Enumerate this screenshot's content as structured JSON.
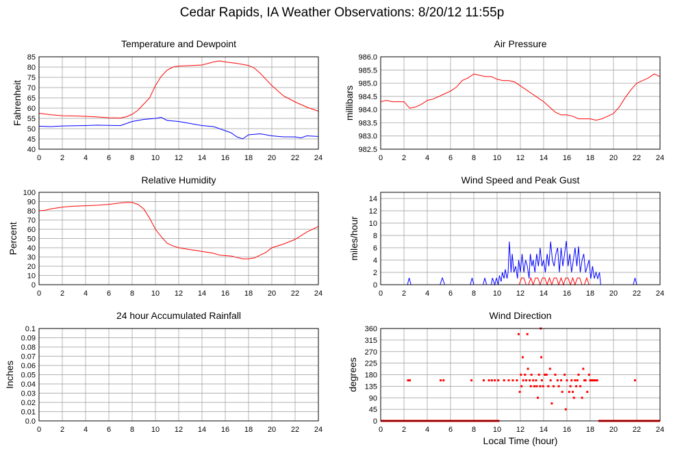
{
  "title": "Cedar Rapids, IA Weather Observations: 8/20/12 11:55p",
  "xlabel": "Local Time (hour)",
  "colors": {
    "red": "#ff0000",
    "blue": "#0000ff",
    "grid": "#999999",
    "frame": "#000000"
  },
  "chart_data": [
    {
      "id": "temp",
      "type": "line",
      "title": "Temperature and Dewpoint",
      "xlabel": "",
      "ylabel": "Fahrenheit",
      "xlim": [
        0,
        24
      ],
      "ylim": [
        40,
        85
      ],
      "xticks": [
        0,
        2,
        4,
        6,
        8,
        10,
        12,
        14,
        16,
        18,
        20,
        22,
        24
      ],
      "yticks": [
        40,
        45,
        50,
        55,
        60,
        65,
        70,
        75,
        80,
        85
      ],
      "grid": true,
      "series": [
        {
          "color": "#ff0000",
          "x": [
            0,
            1,
            2,
            3,
            4,
            5,
            6,
            7,
            7.5,
            8,
            8.5,
            9,
            9.5,
            10,
            10.5,
            11,
            11.5,
            12,
            13,
            14,
            15,
            15.5,
            16,
            17,
            18,
            18.5,
            19,
            20,
            21,
            22,
            23,
            24
          ],
          "y": [
            57.5,
            56.8,
            56.3,
            56.2,
            56.0,
            55.7,
            55.3,
            55.2,
            55.8,
            57,
            59,
            62,
            65,
            71,
            75.5,
            78.5,
            80,
            80.5,
            80.7,
            81,
            82.5,
            83,
            82.5,
            81.8,
            80.8,
            79.5,
            77,
            71,
            66,
            63,
            60.5,
            58.5
          ]
        },
        {
          "color": "#0000ff",
          "x": [
            0,
            1,
            2,
            3,
            4,
            5,
            6,
            7,
            7.5,
            8,
            9,
            10,
            10.5,
            11,
            12,
            13,
            14,
            15,
            16,
            16.5,
            17,
            17.5,
            18,
            19,
            20,
            21,
            22,
            22.5,
            23,
            24
          ],
          "y": [
            51.2,
            51.0,
            51.3,
            51.4,
            51.5,
            51.7,
            51.6,
            51.5,
            52.5,
            53.5,
            54.5,
            55,
            55.5,
            54,
            53.5,
            52.5,
            51.5,
            51,
            49,
            48,
            46,
            45,
            47,
            47.5,
            46.5,
            46,
            46,
            45.5,
            46.5,
            46.2
          ]
        }
      ]
    },
    {
      "id": "pressure",
      "type": "line",
      "title": "Air Pressure",
      "xlabel": "",
      "ylabel": "millibars",
      "xlim": [
        0,
        24
      ],
      "ylim": [
        982.5,
        986.0
      ],
      "xticks": [
        0,
        2,
        4,
        6,
        8,
        10,
        12,
        14,
        16,
        18,
        20,
        22,
        24
      ],
      "yticks": [
        982.5,
        983.0,
        983.5,
        984.0,
        984.5,
        985.0,
        985.5,
        986.0
      ],
      "ytick_labels": [
        "982.5",
        "983.0",
        "983.5",
        "984.0",
        "984.5",
        "985.0",
        "985.5",
        "986.0"
      ],
      "grid": true,
      "series": [
        {
          "color": "#ff0000",
          "x": [
            0,
            0.5,
            1,
            1.5,
            2,
            2.5,
            3,
            3.5,
            4,
            4.5,
            5,
            5.5,
            6,
            6.5,
            7,
            7.5,
            8,
            8.5,
            9,
            9.5,
            10,
            10.5,
            11,
            11.5,
            12,
            12.5,
            13,
            13.5,
            14,
            14.5,
            15,
            15.5,
            16,
            16.5,
            17,
            17.5,
            18,
            18.5,
            19,
            19.5,
            20,
            20.5,
            21,
            21.5,
            22,
            22.5,
            23,
            23.5,
            24
          ],
          "y": [
            984.3,
            984.35,
            984.3,
            984.3,
            984.3,
            984.05,
            984.1,
            984.2,
            984.35,
            984.4,
            984.5,
            984.6,
            984.7,
            984.85,
            985.1,
            985.2,
            985.35,
            985.3,
            985.25,
            985.25,
            985.15,
            985.1,
            985.1,
            985.05,
            984.9,
            984.75,
            984.6,
            984.45,
            984.3,
            984.1,
            983.9,
            983.8,
            983.8,
            983.75,
            983.65,
            983.65,
            983.65,
            983.6,
            983.65,
            983.75,
            983.85,
            984.1,
            984.45,
            984.75,
            985.0,
            985.1,
            985.2,
            985.35,
            985.25
          ]
        }
      ]
    },
    {
      "id": "humidity",
      "type": "line",
      "title": "Relative Humidity",
      "xlabel": "",
      "ylabel": "Percent",
      "xlim": [
        0,
        24
      ],
      "ylim": [
        0,
        100
      ],
      "xticks": [
        0,
        2,
        4,
        6,
        8,
        10,
        12,
        14,
        16,
        18,
        20,
        22,
        24
      ],
      "yticks": [
        0,
        10,
        20,
        30,
        40,
        50,
        60,
        70,
        80,
        90,
        100
      ],
      "grid": true,
      "series": [
        {
          "color": "#ff0000",
          "x": [
            0,
            0.5,
            1,
            2,
            3,
            4,
            5,
            6,
            7,
            7.5,
            8,
            8.5,
            9,
            9.5,
            10,
            10.5,
            11,
            11.5,
            12,
            13,
            14,
            15,
            15.5,
            16,
            16.5,
            17,
            17.5,
            18,
            18.5,
            19,
            19.5,
            20,
            21,
            22,
            23,
            24
          ],
          "y": [
            80,
            80.5,
            82,
            84,
            85,
            85.5,
            86,
            87,
            88.5,
            89,
            89,
            87,
            82,
            72,
            60,
            52,
            45,
            42,
            40,
            38,
            36,
            34,
            32,
            31.5,
            31,
            29.5,
            28,
            28,
            29,
            32,
            35,
            40,
            44,
            49,
            57,
            63
          ]
        }
      ]
    },
    {
      "id": "wind",
      "type": "line",
      "title": "Wind Speed and Peak Gust",
      "xlabel": "",
      "ylabel": "miles/hour",
      "xlim": [
        0,
        24
      ],
      "ylim": [
        0,
        15
      ],
      "xticks": [
        0,
        2,
        4,
        6,
        8,
        10,
        12,
        14,
        16,
        18,
        20,
        22,
        24
      ],
      "yticks": [
        0,
        2,
        4,
        6,
        8,
        10,
        12,
        14
      ],
      "grid": true,
      "series": [
        {
          "color": "#0000ff",
          "x": [
            0,
            2.3,
            2.45,
            2.6,
            5.1,
            5.3,
            5.5,
            7.7,
            7.85,
            8,
            8.8,
            8.95,
            9.1,
            9.5,
            9.6,
            9.8,
            9.95,
            10.1,
            10.2,
            10.35,
            10.45,
            10.6,
            10.7,
            10.85,
            10.95,
            11.05,
            11.2,
            11.3,
            11.45,
            11.6,
            11.75,
            11.85,
            12,
            12.15,
            12.3,
            12.45,
            12.6,
            12.75,
            12.85,
            13,
            13.1,
            13.25,
            13.4,
            13.55,
            13.7,
            13.85,
            14,
            14.15,
            14.3,
            14.45,
            14.6,
            14.75,
            14.9,
            15.05,
            15.2,
            15.35,
            15.5,
            15.65,
            15.8,
            15.95,
            16.1,
            16.25,
            16.4,
            16.55,
            16.7,
            16.85,
            17,
            17.15,
            17.3,
            17.45,
            17.6,
            17.75,
            17.9,
            18.05,
            18.2,
            18.35,
            18.5,
            18.65,
            18.8,
            18.9,
            19,
            21.7,
            21.85,
            22,
            24
          ],
          "y": [
            0,
            0,
            1.1,
            0,
            0,
            1.1,
            0,
            0,
            1.1,
            0,
            0,
            1.1,
            0,
            0,
            1.1,
            0,
            1.1,
            0,
            1.5,
            0.5,
            2,
            1,
            2.5,
            1,
            2,
            7,
            2,
            5,
            2,
            3,
            1,
            4,
            2,
            5,
            2,
            4,
            3,
            1,
            5,
            3,
            4,
            2,
            5,
            3,
            6,
            3,
            4,
            2,
            5,
            3,
            7,
            4,
            3,
            5,
            6,
            2,
            6,
            3,
            5,
            7.1,
            3,
            5,
            2,
            4,
            6,
            3,
            6.2,
            2,
            4,
            5,
            2,
            3,
            4,
            1,
            3,
            1,
            2,
            1,
            2,
            0,
            0,
            0,
            1.1,
            0,
            0
          ]
        },
        {
          "color": "#ff0000",
          "x": [
            0,
            11.9,
            12.1,
            12.3,
            12.5,
            12.7,
            12.9,
            13.1,
            13.3,
            13.5,
            13.7,
            13.9,
            14.1,
            14.3,
            14.5,
            14.7,
            14.9,
            15.1,
            15.3,
            15.5,
            15.7,
            15.9,
            16.1,
            16.3,
            16.5,
            16.7,
            16.9,
            17.1,
            17.3,
            17.5,
            17.7,
            17.9,
            24
          ],
          "y": [
            0,
            0,
            1.1,
            1.1,
            0,
            0,
            1.1,
            0,
            1.1,
            1.1,
            0,
            1.1,
            1.1,
            0,
            1.1,
            0,
            1.1,
            1.1,
            0,
            1.1,
            0,
            1.1,
            1.1,
            0,
            1.1,
            0,
            1.1,
            1.1,
            0,
            0,
            1.1,
            0,
            0
          ]
        }
      ]
    },
    {
      "id": "rain",
      "type": "line",
      "title": "24 hour Accumulated Rainfall",
      "xlabel": "",
      "ylabel": "Inches",
      "xlim": [
        0,
        24
      ],
      "ylim": [
        0,
        0.1
      ],
      "xticks": [
        0,
        2,
        4,
        6,
        8,
        10,
        12,
        14,
        16,
        18,
        20,
        22,
        24
      ],
      "yticks": [
        0,
        0.01,
        0.02,
        0.03,
        0.04,
        0.05,
        0.06,
        0.07,
        0.08,
        0.09,
        0.1
      ],
      "ytick_labels": [
        "0.0",
        "0.01",
        "0.02",
        "0.03",
        "0.04",
        "0.05",
        "0.06",
        "0.07",
        "0.08",
        "0.09",
        "0.1"
      ],
      "grid": true,
      "series": [
        {
          "color": "#ff0000",
          "x": [
            0,
            24
          ],
          "y": [
            0,
            0
          ]
        }
      ]
    },
    {
      "id": "direction",
      "type": "scatter",
      "title": "Wind Direction",
      "xlabel": "Local Time (hour)",
      "ylabel": "degrees",
      "xlim": [
        0,
        24
      ],
      "ylim": [
        0,
        360
      ],
      "xticks": [
        0,
        2,
        4,
        6,
        8,
        10,
        12,
        14,
        16,
        18,
        20,
        22,
        24
      ],
      "yticks": [
        0,
        45,
        90,
        135,
        180,
        225,
        270,
        315,
        360
      ],
      "grid": true,
      "zero_segments": [
        [
          0,
          10.2
        ],
        [
          18.7,
          24
        ]
      ],
      "series": [
        {
          "color": "#ff0000",
          "x": [
            2.35,
            2.5,
            5.15,
            5.4,
            7.8,
            8.85,
            9.3,
            9.55,
            9.8,
            10.1,
            10.6,
            11.0,
            11.35,
            11.7,
            11.85,
            11.95,
            12.05,
            12.1,
            12.2,
            12.25,
            12.4,
            12.5,
            12.6,
            12.65,
            12.8,
            12.9,
            12.95,
            13.1,
            13.2,
            13.35,
            13.4,
            13.5,
            13.6,
            13.7,
            13.75,
            13.8,
            13.85,
            13.95,
            14.1,
            14.25,
            14.4,
            14.55,
            14.6,
            14.7,
            14.85,
            15.0,
            15.2,
            15.3,
            15.5,
            15.6,
            15.8,
            15.9,
            16.0,
            16.2,
            16.3,
            16.4,
            16.5,
            16.6,
            16.7,
            16.8,
            16.9,
            17.0,
            17.15,
            17.3,
            17.4,
            17.5,
            17.6,
            17.75,
            17.9,
            18.0,
            18.1,
            18.2,
            18.3,
            18.45,
            18.6,
            21.85
          ],
          "y": [
            158,
            158,
            158,
            158,
            158,
            158,
            158,
            158,
            158,
            158,
            158,
            158,
            158,
            158,
            338,
            113,
            180,
            135,
            248,
            158,
            180,
            158,
            338,
            203,
            158,
            135,
            180,
            158,
            135,
            158,
            135,
            90,
            180,
            135,
            360,
            248,
            158,
            135,
            180,
            180,
            135,
            203,
            158,
            68,
            135,
            180,
            158,
            135,
            158,
            113,
            180,
            45,
            158,
            113,
            135,
            158,
            113,
            90,
            158,
            135,
            158,
            180,
            135,
            90,
            203,
            158,
            158,
            113,
            180,
            158,
            158,
            158,
            158,
            158,
            158,
            158
          ]
        }
      ]
    }
  ]
}
